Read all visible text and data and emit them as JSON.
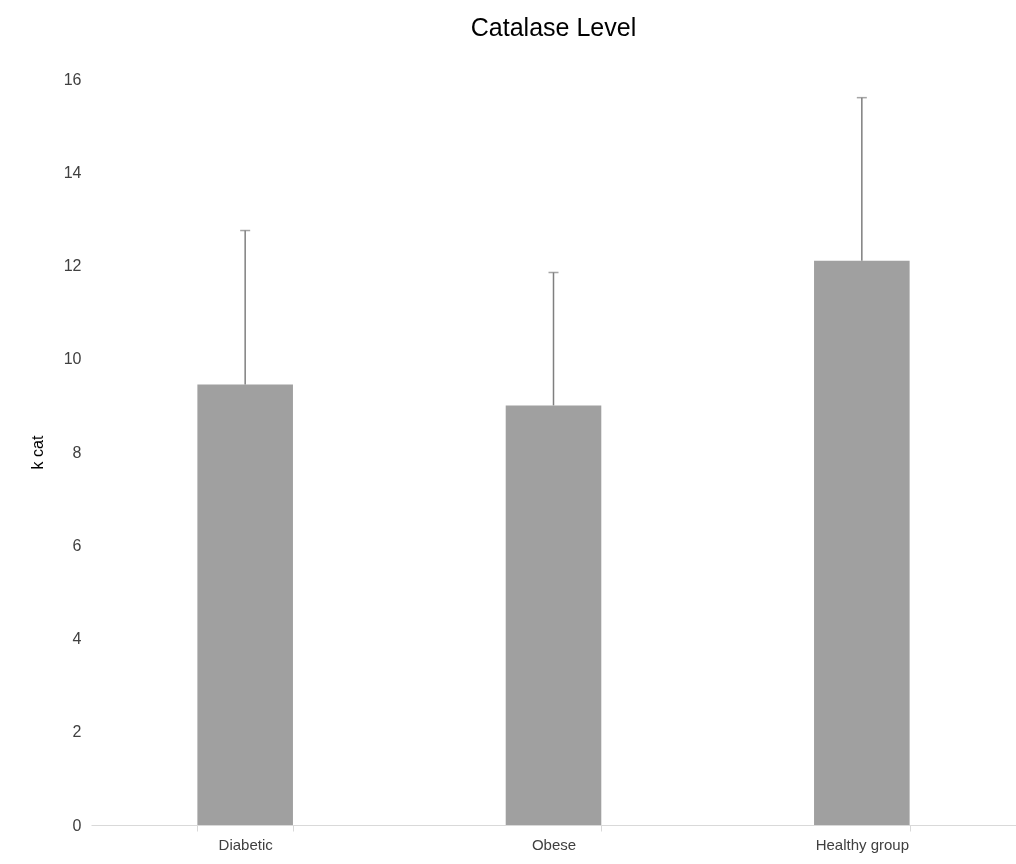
{
  "chart_data": {
    "type": "bar",
    "title": "Catalase Level",
    "ylabel": "k cat",
    "categories": [
      "Diabetic",
      "Obese",
      "Healthy group"
    ],
    "values": [
      9.45,
      9.0,
      12.1
    ],
    "errors": [
      [
        9.45,
        12.75
      ],
      [
        9.0,
        11.85
      ],
      [
        12.1,
        15.6
      ]
    ],
    "color": "#a0a0a0",
    "ylim": [
      0,
      16
    ],
    "yticks": [
      0,
      2,
      4,
      6,
      8,
      10,
      12,
      14,
      16
    ],
    "grid": false
  }
}
